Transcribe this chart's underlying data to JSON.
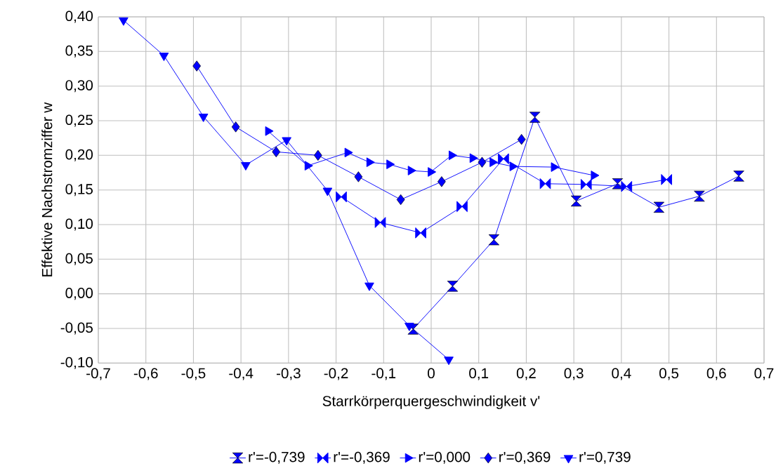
{
  "chart_data": {
    "type": "line",
    "xlabel": "Starrkörperquergeschwindigkeit v'",
    "ylabel": "Effektive Nachstromziffer w",
    "xlim": [
      -0.7,
      0.7
    ],
    "ylim": [
      -0.1,
      0.4
    ],
    "xticks": [
      {
        "value": -0.7,
        "label": "-0,7"
      },
      {
        "value": -0.6,
        "label": "-0,6"
      },
      {
        "value": -0.5,
        "label": "-0,5"
      },
      {
        "value": -0.4,
        "label": "-0,4"
      },
      {
        "value": -0.3,
        "label": "-0,3"
      },
      {
        "value": -0.2,
        "label": "-0,2"
      },
      {
        "value": -0.1,
        "label": "-0,1"
      },
      0,
      {
        "value": 0.1,
        "label": "0,1"
      },
      {
        "value": 0.2,
        "label": "0,2"
      },
      {
        "value": 0.3,
        "label": "0,3"
      },
      {
        "value": 0.4,
        "label": "0,4"
      },
      {
        "value": 0.5,
        "label": "0,5"
      },
      {
        "value": 0.6,
        "label": "0,6"
      },
      {
        "value": 0.7,
        "label": "0,7"
      }
    ],
    "yticks": [
      {
        "value": -0.1,
        "label": "-0,10"
      },
      {
        "value": -0.05,
        "label": "-0,05"
      },
      {
        "value": 0,
        "label": "0,00"
      },
      {
        "value": 0.05,
        "label": "0,05"
      },
      {
        "value": 0.1,
        "label": "0,10"
      },
      {
        "value": 0.15,
        "label": "0,15"
      },
      {
        "value": 0.2,
        "label": "0,20"
      },
      {
        "value": 0.25,
        "label": "0,25"
      },
      {
        "value": 0.3,
        "label": "0,30"
      },
      {
        "value": 0.35,
        "label": "0,35"
      },
      {
        "value": 0.4,
        "label": "0,40"
      }
    ],
    "grid": true,
    "legend": "bottom",
    "line_style": "solid",
    "series": [
      {
        "name": "r'=-0,739",
        "color": "#0000ff",
        "marker": "diamond",
        "x": [
          -0.038,
          0.045,
          0.132,
          0.218,
          0.305,
          0.392,
          0.479,
          0.564,
          0.647
        ],
        "values": [
          -0.051,
          0.011,
          0.078,
          0.255,
          0.134,
          0.159,
          0.125,
          0.141,
          0.17
        ]
      },
      {
        "name": "r'=-0,369",
        "color": "#0000ff",
        "marker": "diamond",
        "x": [
          -0.189,
          -0.107,
          -0.022,
          0.065,
          0.152,
          0.24,
          0.326,
          0.411,
          0.495
        ],
        "values": [
          0.14,
          0.103,
          0.088,
          0.126,
          0.195,
          0.159,
          0.158,
          0.155,
          0.165
        ]
      },
      {
        "name": "r'=0,000",
        "color": "#0000ff",
        "marker": "triangle",
        "x": [
          -0.343,
          -0.26,
          -0.176,
          -0.13,
          -0.088,
          -0.043,
          -0.001,
          0.043,
          0.087,
          0.129,
          0.171,
          0.258,
          0.342
        ],
        "values": [
          0.235,
          0.185,
          0.204,
          0.19,
          0.187,
          0.178,
          0.176,
          0.2,
          0.196,
          0.19,
          0.184,
          0.183,
          0.171
        ]
      },
      {
        "name": "r'=0,369",
        "color": "#0000ff",
        "marker": "diamond",
        "x": [
          -0.493,
          -0.411,
          -0.326,
          -0.238,
          -0.153,
          -0.064,
          0.022,
          0.107,
          0.19
        ],
        "values": [
          0.329,
          0.241,
          0.205,
          0.2,
          0.169,
          0.136,
          0.162,
          0.19,
          0.223
        ]
      },
      {
        "name": "r'=0,739",
        "color": "#0000ff",
        "marker": "triangle",
        "x": [
          -0.647,
          -0.562,
          -0.479,
          -0.39,
          -0.304,
          -0.218,
          -0.13,
          -0.046,
          0.037
        ],
        "values": [
          0.395,
          0.344,
          0.256,
          0.186,
          0.222,
          0.149,
          0.012,
          -0.046,
          -0.095
        ]
      }
    ]
  }
}
